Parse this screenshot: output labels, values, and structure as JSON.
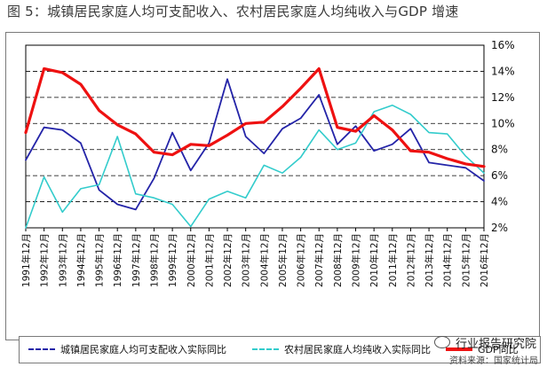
{
  "title": "图 5：城镇居民家庭人均可支配收入、农村居民家庭人均纯收入与GDP 增速",
  "watermark": "行业报告研究院",
  "source": "资料来源：国家统计局",
  "chart_data": {
    "type": "line",
    "categories": [
      "1991年12月",
      "1992年12月",
      "1993年12月",
      "1994年12月",
      "1995年12月",
      "1996年12月",
      "1997年12月",
      "1998年12月",
      "1999年12月",
      "2000年12月",
      "2001年12月",
      "2002年12月",
      "2003年12月",
      "2004年12月",
      "2005年12月",
      "2006年12月",
      "2007年12月",
      "2008年12月",
      "2009年12月",
      "2010年12月",
      "2011年12月",
      "2012年12月",
      "2013年12月",
      "2014年12月",
      "2015年12月",
      "2016年12月"
    ],
    "ylim": [
      2,
      16
    ],
    "yticks": [
      "2%",
      "4%",
      "6%",
      "8%",
      "10%",
      "12%",
      "14%",
      "16%"
    ],
    "ytick_values": [
      2,
      4,
      6,
      8,
      10,
      12,
      14,
      16
    ],
    "grid": true,
    "legend_position": "bottom",
    "series": [
      {
        "name": "城镇居民家庭人均可支配收入实际同比",
        "color": "#2424a8",
        "width": 1.8,
        "values": [
          7.2,
          9.7,
          9.5,
          8.5,
          4.9,
          3.8,
          3.4,
          5.8,
          9.3,
          6.4,
          8.5,
          13.4,
          9.0,
          7.7,
          9.6,
          10.4,
          12.2,
          8.4,
          9.8,
          7.9,
          8.4,
          9.6,
          7.0,
          6.8,
          6.6,
          5.6
        ]
      },
      {
        "name": "农村居民家庭人均纯收入实际同比",
        "color": "#33cccc",
        "width": 1.6,
        "values": [
          2.0,
          5.9,
          3.2,
          5.0,
          5.3,
          9.0,
          4.6,
          4.3,
          3.8,
          2.1,
          4.2,
          4.8,
          4.3,
          6.8,
          6.2,
          7.4,
          9.5,
          8.0,
          8.5,
          10.9,
          11.4,
          10.7,
          9.3,
          9.2,
          7.5,
          6.2
        ]
      },
      {
        "name": "GDP同比",
        "color": "#ee1111",
        "width": 3.2,
        "values": [
          9.3,
          14.2,
          13.9,
          13.0,
          11.0,
          9.9,
          9.2,
          7.8,
          7.6,
          8.4,
          8.3,
          9.1,
          10.0,
          10.1,
          11.3,
          12.7,
          14.2,
          9.7,
          9.4,
          10.6,
          9.5,
          7.9,
          7.8,
          7.3,
          6.9,
          6.7
        ]
      }
    ]
  }
}
